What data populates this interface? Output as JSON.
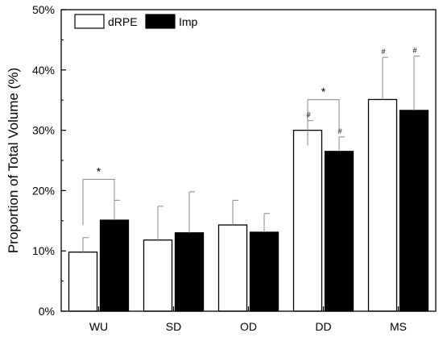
{
  "chart_data": {
    "type": "bar",
    "title": "",
    "xlabel": "",
    "ylabel": "Proportion of Total Volume (%)",
    "ylim": [
      0,
      50
    ],
    "yticks": [
      0,
      10,
      20,
      30,
      40,
      50
    ],
    "ytick_labels": [
      "0%",
      "10%",
      "20%",
      "30%",
      "40%",
      "50%"
    ],
    "categories": [
      "WU",
      "SD",
      "OD",
      "DD",
      "MS"
    ],
    "legend_position": "top-left",
    "grid": false,
    "series": [
      {
        "name": "dRPE",
        "color": "#ffffff",
        "values": [
          9.8,
          11.8,
          14.3,
          30.0,
          35.1
        ],
        "errors": [
          2.4,
          5.6,
          4.1,
          1.6,
          7.0
        ]
      },
      {
        "name": "Imp",
        "color": "#000000",
        "values": [
          15.1,
          13.0,
          13.1,
          26.5,
          33.3
        ],
        "errors": [
          3.3,
          6.8,
          3.1,
          2.4,
          9.0
        ]
      }
    ],
    "annotations": [
      {
        "text": "*",
        "category": "WU",
        "type": "bracket"
      },
      {
        "text": "*",
        "category": "DD",
        "type": "bracket"
      },
      {
        "text": "#",
        "category": "DD",
        "series": "dRPE"
      },
      {
        "text": "#",
        "category": "DD",
        "series": "Imp"
      },
      {
        "text": "#",
        "category": "MS",
        "series": "dRPE"
      },
      {
        "text": "#",
        "category": "MS",
        "series": "Imp"
      }
    ]
  }
}
